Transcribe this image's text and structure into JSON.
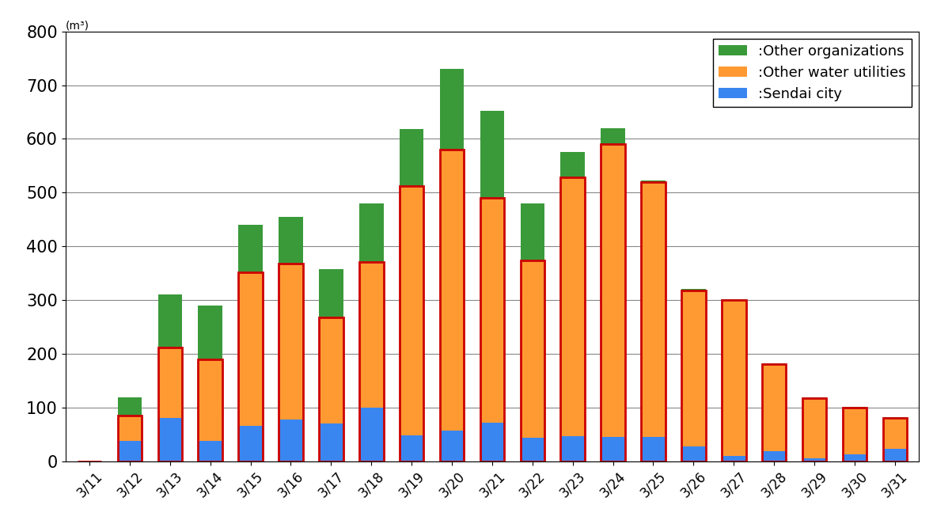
{
  "chart_data": {
    "type": "bar",
    "stacked": true,
    "y_label": "(m³)",
    "categories": [
      "3/11",
      "3/12",
      "3/13",
      "3/14",
      "3/15",
      "3/16",
      "3/17",
      "3/18",
      "3/19",
      "3/20",
      "3/21",
      "3/22",
      "3/23",
      "3/24",
      "3/25",
      "3/26",
      "3/27",
      "3/28",
      "3/29",
      "3/30",
      "3/31"
    ],
    "series": [
      {
        "name": ":Sendai city",
        "color": "#3a86f0",
        "values": [
          0,
          38,
          80,
          37,
          65,
          78,
          70,
          100,
          48,
          57,
          72,
          43,
          46,
          45,
          45,
          28,
          10,
          18,
          5,
          12,
          23
        ]
      },
      {
        "name": ":Other water utilities",
        "color": "#ff9a33",
        "values": [
          0,
          47,
          132,
          153,
          287,
          290,
          197,
          270,
          464,
          523,
          418,
          330,
          482,
          545,
          475,
          289,
          290,
          162,
          112,
          88,
          57
        ]
      },
      {
        "name": ":Other organizations",
        "color": "#3a9a3a",
        "values": [
          0,
          33,
          98,
          100,
          88,
          87,
          91,
          110,
          106,
          150,
          162,
          107,
          47,
          30,
          2,
          3,
          2,
          2,
          2,
          1,
          2
        ]
      }
    ],
    "ylim": [
      0,
      800
    ],
    "yticks": [
      0,
      100,
      200,
      300,
      400,
      500,
      600,
      700,
      800
    ],
    "grid": true,
    "legend": "upper right"
  }
}
